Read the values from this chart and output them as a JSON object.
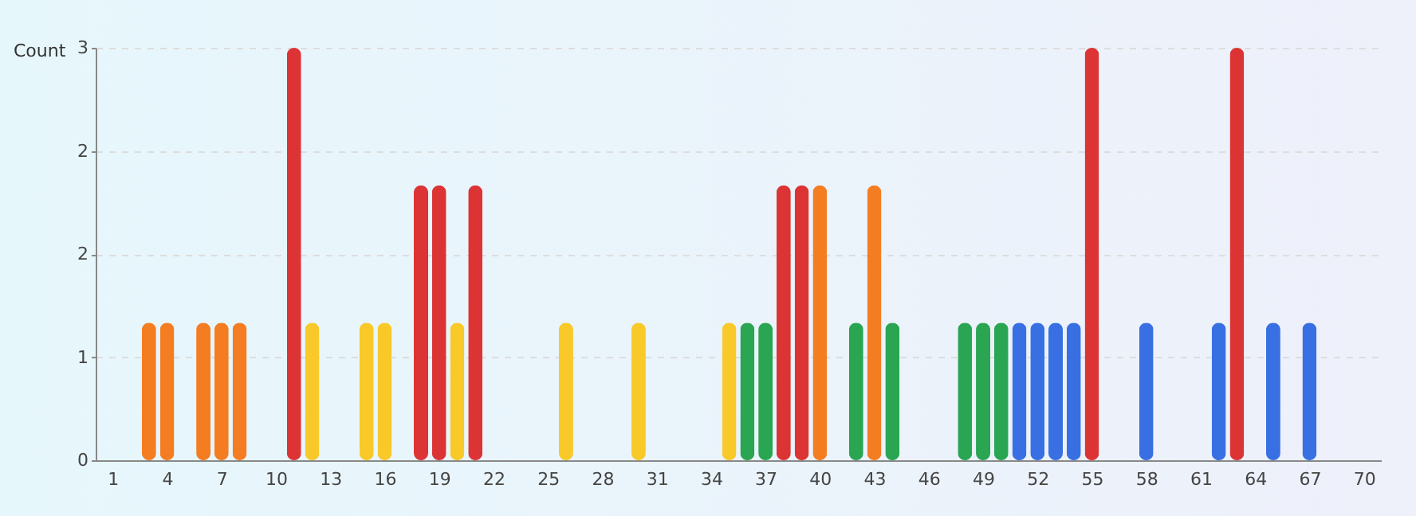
{
  "chart_data": {
    "type": "bar",
    "ylabel": "Count",
    "x": [
      3,
      4,
      6,
      7,
      8,
      11,
      12,
      15,
      16,
      18,
      19,
      20,
      21,
      26,
      30,
      35,
      36,
      37,
      38,
      39,
      40,
      42,
      43,
      44,
      48,
      49,
      50,
      51,
      52,
      53,
      54,
      55,
      58,
      62,
      63,
      65,
      67
    ],
    "values": [
      1,
      1,
      1,
      1,
      1,
      3,
      1,
      1,
      1,
      2,
      2,
      1,
      2,
      1,
      1,
      1,
      1,
      1,
      2,
      2,
      2,
      1,
      2,
      1,
      1,
      1,
      1,
      1,
      1,
      1,
      1,
      3,
      1,
      1,
      3,
      1,
      1
    ],
    "colors": [
      "#f47d22",
      "#f47d22",
      "#f47d22",
      "#f47d22",
      "#f47d22",
      "#dc3434",
      "#f8c929",
      "#f8c929",
      "#f8c929",
      "#dc3434",
      "#dc3434",
      "#f8c929",
      "#dc3434",
      "#f8c929",
      "#f8c929",
      "#f8c929",
      "#2aa551",
      "#2aa551",
      "#dc3434",
      "#dc3434",
      "#f47d22",
      "#2aa551",
      "#f47d22",
      "#2aa551",
      "#2aa551",
      "#2aa551",
      "#2aa551",
      "#386fe3",
      "#386fe3",
      "#386fe3",
      "#386fe3",
      "#dc3434",
      "#386fe3",
      "#386fe3",
      "#dc3434",
      "#386fe3",
      "#386fe3"
    ],
    "xlim": [
      0.5,
      70.5
    ],
    "xticks": [
      1,
      4,
      7,
      10,
      13,
      16,
      19,
      22,
      25,
      28,
      31,
      34,
      37,
      40,
      43,
      46,
      49,
      52,
      55,
      58,
      61,
      64,
      67,
      70
    ],
    "ylim": [
      0,
      3
    ],
    "yticks": [
      0,
      {
        "value": 0.75,
        "label": "1"
      },
      {
        "value": 1.5,
        "label": "2"
      },
      {
        "value": 2.25,
        "label": "2"
      },
      3
    ],
    "grid": "y"
  }
}
